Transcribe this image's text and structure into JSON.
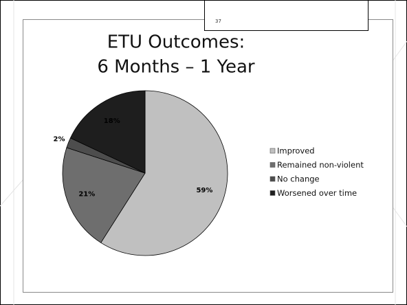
{
  "slide_number": "37",
  "chart_data": {
    "type": "pie",
    "title": [
      "ETU Outcomes:",
      "6 Months – 1 Year"
    ],
    "categories": [
      "Improved",
      "Remained non-violent",
      "No change",
      "Worsened over time"
    ],
    "values": [
      59,
      21,
      2,
      18
    ],
    "value_labels": [
      "59%",
      "21%",
      "2%",
      "18%"
    ],
    "colors": [
      "#c0c0c0",
      "#6e6e6e",
      "#4d4d4d",
      "#1e1e1e"
    ],
    "legend": "right"
  }
}
